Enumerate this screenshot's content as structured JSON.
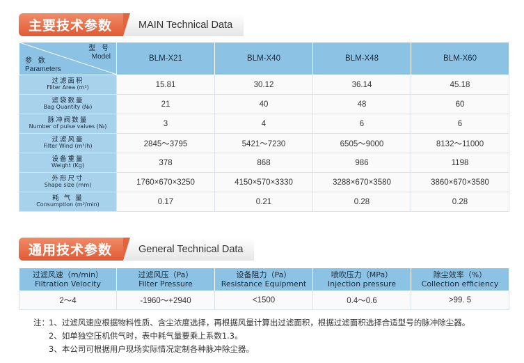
{
  "main_section": {
    "title_cn": "主要技术参数",
    "title_en": "MAIN Technical Data"
  },
  "main_table": {
    "corner_model_cn": "型 号",
    "corner_model_en": "Model",
    "corner_param_cn": "参 数",
    "corner_param_en": "Parameters",
    "models": [
      "BLM-X21",
      "BLM-X40",
      "BLM-X48",
      "BLM-X60"
    ],
    "rows": [
      {
        "cn": "过滤面积",
        "en": "Filter Area (m²)",
        "values": [
          "15.81",
          "30.12",
          "36.14",
          "45.18"
        ]
      },
      {
        "cn": "滤袋数量",
        "en": "Bag Quantity (№)",
        "values": [
          "21",
          "40",
          "48",
          "60"
        ]
      },
      {
        "cn": "脉冲阀数量",
        "en": "Number of pulse valves (№)",
        "values": [
          "3",
          "4",
          "6",
          "6"
        ]
      },
      {
        "cn": "过滤风量",
        "en": "Filter Wind (m³/h)",
        "values": [
          "2845～3795",
          "5421～7230",
          "6505～9000",
          "8132～11000"
        ]
      },
      {
        "cn": "设备重量",
        "en": "Weight (Kg)",
        "values": [
          "378",
          "868",
          "986",
          "1198"
        ]
      },
      {
        "cn": "外形尺寸",
        "en": "Shape size (mm)",
        "values": [
          "1760×670×3250",
          "4150×570×3330",
          "3288×670×3580",
          "3860×670×3580"
        ]
      },
      {
        "cn": "耗 气 量",
        "en": "Consumption (m³/min)",
        "values": [
          "0.17",
          "0.21",
          "0.28",
          "0.28"
        ]
      }
    ]
  },
  "general_section": {
    "title_cn": "通用技术参数",
    "title_en": "General Technical Data"
  },
  "general_table": {
    "headers": [
      {
        "cn": "过滤风速（m/min）",
        "en": "Filtration Velocity"
      },
      {
        "cn": "过滤风压（Pa）",
        "en": "Filter Pressure"
      },
      {
        "cn": "设备阻力（Pa）",
        "en": "Resistance Equipment"
      },
      {
        "cn": "喷吹压力（MPa）",
        "en": "Injection pressure"
      },
      {
        "cn": "除尘效率（%）",
        "en": "Collection efficiency"
      }
    ],
    "values": [
      "2～4",
      "-1960～+2940",
      "<1500",
      "0.4～0.6",
      ">99. 5"
    ]
  },
  "notes": {
    "prefix": "注：",
    "items": [
      "1、过滤风速应根据物料性质、含尘浓度选择，再根据风量计算出过滤面积，根据过滤面积选择合适型号的脉冲除尘器。",
      "2、如单独空压机供气时，表中耗气量要乘上系数1.3。",
      "3、本公司可根据用户现场实际情况定制各种脉冲除尘器。"
    ]
  }
}
